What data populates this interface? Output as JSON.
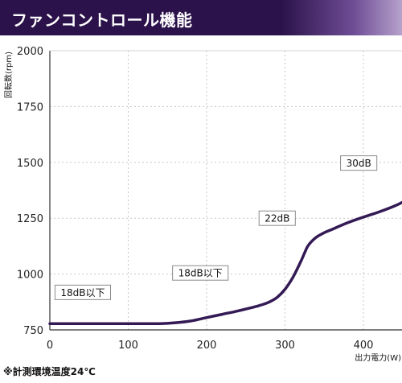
{
  "header": {
    "title": "ファンコントロール機能"
  },
  "footnote": "※計測環境温度24℃",
  "colors": {
    "header_bg": "#2b124a",
    "line": "#341a55",
    "grid": "#c8c8c8"
  },
  "chart_data": {
    "type": "line",
    "title": "",
    "xlabel": "出力電力(W)",
    "ylabel": "回転数(rpm)",
    "xlim": [
      0,
      450
    ],
    "ylim": [
      750,
      2000
    ],
    "xticks": [
      0,
      100,
      200,
      300,
      400
    ],
    "yticks": [
      750,
      1000,
      1250,
      1500,
      1750,
      2000
    ],
    "grid": true,
    "series": [
      {
        "points": [
          [
            0,
            778
          ],
          [
            50,
            778
          ],
          [
            100,
            778
          ],
          [
            140,
            778
          ],
          [
            160,
            782
          ],
          [
            180,
            790
          ],
          [
            200,
            805
          ],
          [
            220,
            820
          ],
          [
            240,
            835
          ],
          [
            260,
            852
          ],
          [
            270,
            862
          ],
          [
            280,
            875
          ],
          [
            290,
            896
          ],
          [
            300,
            932
          ],
          [
            310,
            985
          ],
          [
            320,
            1055
          ],
          [
            325,
            1095
          ],
          [
            330,
            1130
          ],
          [
            340,
            1165
          ],
          [
            350,
            1185
          ],
          [
            360,
            1200
          ],
          [
            380,
            1230
          ],
          [
            400,
            1255
          ],
          [
            420,
            1278
          ],
          [
            440,
            1305
          ],
          [
            450,
            1322
          ]
        ]
      }
    ],
    "annotations": [
      {
        "text": "18dB以下",
        "x": 42,
        "y": 918
      },
      {
        "text": "18dB以下",
        "x": 192,
        "y": 1005
      },
      {
        "text": "22dB",
        "x": 290,
        "y": 1250
      },
      {
        "text": "30dB",
        "x": 394,
        "y": 1497
      }
    ]
  }
}
